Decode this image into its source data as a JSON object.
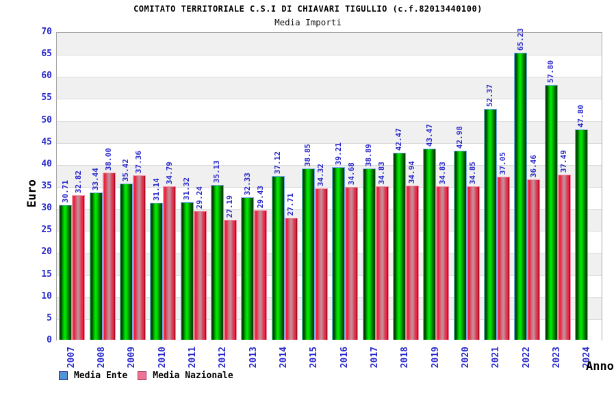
{
  "header": {
    "title": "COMITATO TERRITORIALE C.S.I DI CHIAVARI TIGULLIO (c.f.82013440100)",
    "subtitle": "Media Importi"
  },
  "chart_data": {
    "type": "bar",
    "title": "COMITATO TERRITORIALE C.S.I DI CHIAVARI TIGULLIO (c.f.82013440100)",
    "subtitle": "Media Importi",
    "xlabel": "Anno",
    "ylabel": "Euro",
    "ylim": [
      0,
      70
    ],
    "ytick_step": 5,
    "yticks": [
      0,
      5,
      10,
      15,
      20,
      25,
      30,
      35,
      40,
      45,
      50,
      55,
      60,
      65,
      70
    ],
    "grid": "horizontal gridlines every 5 with alternating gray/white bands, gray band at 65-70",
    "legend_position": "bottom-left",
    "value_label_decimals": 2,
    "value_label_rotation": "vertical bottom-to-top",
    "categories": [
      "2007",
      "2008",
      "2009",
      "2010",
      "2011",
      "2012",
      "2013",
      "2014",
      "2015",
      "2016",
      "2017",
      "2018",
      "2019",
      "2020",
      "2021",
      "2022",
      "2023",
      "2024"
    ],
    "series": [
      {
        "name": "Media Ente",
        "bar_color": "#00cc00",
        "bar_border_color": "#74a7e8",
        "legend_color": "#5294d2",
        "legend_border": "#26269c",
        "values": [
          30.71,
          33.44,
          35.42,
          31.14,
          31.32,
          35.13,
          32.33,
          37.12,
          38.85,
          39.21,
          38.89,
          42.47,
          43.47,
          42.98,
          52.37,
          65.23,
          57.8,
          47.8
        ]
      },
      {
        "name": "Media Nazionale",
        "bar_color": "#dd2233",
        "bar_border_color": "#f08aa0",
        "legend_color": "#ee7296",
        "legend_border": "#a03050",
        "values": [
          32.82,
          38.0,
          37.36,
          34.79,
          29.24,
          27.19,
          29.43,
          27.71,
          34.32,
          34.68,
          34.83,
          34.94,
          34.83,
          34.85,
          37.05,
          36.46,
          37.49,
          null
        ]
      }
    ],
    "colors": {
      "axis_text_blue": "#2929cc",
      "band_gray": "#f0f0f0",
      "gridline": "#dcdcdc",
      "plot_border": "#a6a6a6",
      "title_black": "#000000"
    }
  }
}
